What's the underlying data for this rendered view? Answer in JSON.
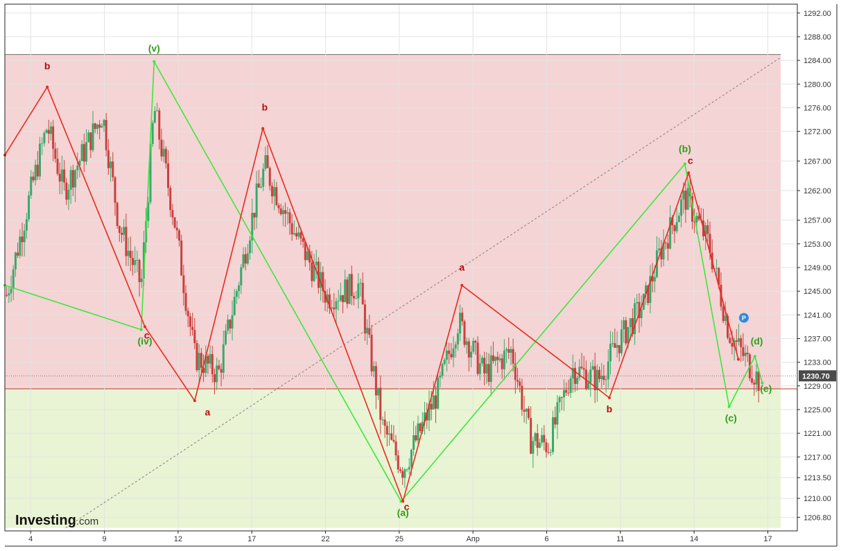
{
  "brand": {
    "name": "Investing",
    "suffix": ".com"
  },
  "marker_label": "P",
  "colors": {
    "bearish_zone": "#f4d4d4",
    "bullish_zone": "#e9f4d4",
    "red_wave": "#e8281f",
    "green_wave": "#3ee63e",
    "red_label": "#b50d0d",
    "green_label": "#2f9e1d",
    "candle_up": "#39a86b",
    "candle_down": "#c9403d",
    "price_badge": "#4a4a4a",
    "marker": "#2d8be0"
  },
  "chart_data": {
    "type": "candlestick",
    "title": "",
    "xlabel": "",
    "ylabel": "",
    "ylim": [
      1204.5,
      1293.5
    ],
    "y_ticks": [
      1206.8,
      1210.0,
      1213.5,
      1217.0,
      1221.0,
      1225.0,
      1229.0,
      1233.0,
      1237.0,
      1241.0,
      1245.0,
      1249.0,
      1253.0,
      1257.0,
      1262.0,
      1267.0,
      1272.0,
      1276.0,
      1280.0,
      1284.0,
      1288.0,
      1292.0
    ],
    "y_tick_labels": [
      "1206.80",
      "1210.00",
      "1213.50",
      "1217.00",
      "1221.00",
      "1225.00",
      "1229.00",
      "1233.00",
      "1237.00",
      "1241.00",
      "1245.00",
      "1249.00",
      "1253.00",
      "1257.00",
      "1262.00",
      "1267.00",
      "1272.00",
      "1276.00",
      "1280.00",
      "1284.00",
      "1288.00",
      "1292.00"
    ],
    "xlim": [
      0,
      43
    ],
    "x_ticks": [
      1.4,
      5.4,
      9.4,
      13.4,
      17.4,
      21.4,
      25.4,
      29.4,
      33.4,
      37.4,
      41.4
    ],
    "x_tick_labels": [
      "4",
      "9",
      "12",
      "17",
      "22",
      "25",
      "Апр",
      "6",
      "11",
      "14",
      "17"
    ],
    "grid": true,
    "last_price": 1230.7,
    "last_price_label": "1230.70",
    "zones": [
      {
        "name": "bearish",
        "y_from": 1228.5,
        "y_to": 1285.0,
        "x_to": 42.1
      },
      {
        "name": "bullish",
        "y_from": 1205.0,
        "y_to": 1228.5,
        "x_to": 42.1
      }
    ],
    "trend_line": {
      "points": [
        [
          3.3,
          1205.0
        ],
        [
          42.1,
          1284.5
        ]
      ],
      "style": "dashed"
    },
    "red_wave": {
      "segments": [
        [
          [
            0,
            1268.0
          ],
          [
            2.3,
            1279.5
          ],
          [
            7.6,
            1239.0
          ],
          [
            10.3,
            1226.5
          ],
          [
            14.0,
            1272.5
          ],
          [
            21.6,
            1209.5
          ],
          [
            24.8,
            1246.0
          ],
          [
            32.8,
            1227.0
          ],
          [
            37.1,
            1265.0
          ],
          [
            39.8,
            1233.5
          ]
        ]
      ]
    },
    "green_wave": {
      "segments": [
        [
          [
            0,
            1246.0
          ],
          [
            7.4,
            1238.5
          ],
          [
            8.1,
            1283.8
          ],
          [
            21.5,
            1209.5
          ],
          [
            36.9,
            1266.5
          ],
          [
            39.3,
            1225.5
          ],
          [
            40.7,
            1234.0
          ],
          [
            41.1,
            1229.5
          ]
        ]
      ]
    },
    "labels": [
      {
        "text": "b",
        "color": "red",
        "x": 2.3,
        "y": 1282.5
      },
      {
        "text": "c",
        "color": "red",
        "x": 7.7,
        "y": 1237.0
      },
      {
        "text": "a",
        "color": "red",
        "x": 11.0,
        "y": 1224.0
      },
      {
        "text": "b",
        "color": "red",
        "x": 14.1,
        "y": 1275.5
      },
      {
        "text": "c",
        "color": "red",
        "x": 21.8,
        "y": 1208.0
      },
      {
        "text": "a",
        "color": "red",
        "x": 24.8,
        "y": 1248.5
      },
      {
        "text": "b",
        "color": "red",
        "x": 32.8,
        "y": 1224.5
      },
      {
        "text": "c",
        "color": "red",
        "x": 37.2,
        "y": 1266.5
      },
      {
        "text": "(iv)",
        "color": "green",
        "x": 7.6,
        "y": 1236.0
      },
      {
        "text": "(v)",
        "color": "green",
        "x": 8.1,
        "y": 1285.5
      },
      {
        "text": "(a)",
        "color": "green",
        "x": 21.6,
        "y": 1207.0
      },
      {
        "text": "(b)",
        "color": "green",
        "x": 36.9,
        "y": 1268.5
      },
      {
        "text": "(c)",
        "color": "green",
        "x": 39.4,
        "y": 1223.0
      },
      {
        "text": "(d)",
        "color": "green",
        "x": 40.8,
        "y": 1236.0
      },
      {
        "text": "(e)",
        "color": "green",
        "x": 41.3,
        "y": 1228.0
      }
    ],
    "marker": {
      "x": 40.1,
      "y": 1240.5
    }
  }
}
